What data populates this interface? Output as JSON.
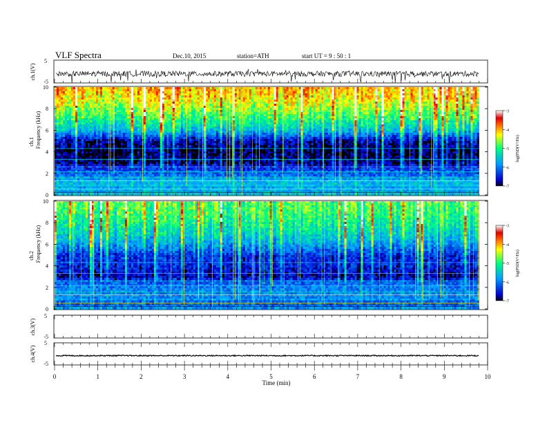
{
  "header": {
    "title": "VLF  Spectra",
    "date": "Dec.10, 2015",
    "station": "station=ATH",
    "start_ut": "start  UT  =   9  : 50 : 1"
  },
  "chart_data": {
    "type": "heatmap",
    "x_axis": {
      "label": "Time  (min)",
      "range": [
        0,
        10
      ],
      "ticks": [
        0,
        1,
        2,
        3,
        4,
        5,
        6,
        7,
        8,
        9,
        10
      ],
      "data_end": 9.8
    },
    "panels": [
      {
        "id": "ch1-waveform",
        "kind": "waveform",
        "ylabel": "ch.1(V)",
        "yticks": [
          "5",
          "-5"
        ],
        "ylim": [
          -5,
          5
        ],
        "baseline": -1,
        "noise_amplitude": 1.2
      },
      {
        "id": "ch1-spectrogram",
        "kind": "spectrogram",
        "ylabel_channel": "ch.1",
        "ylabel": "Frequency  (kHz)",
        "ylim": [
          0,
          10
        ],
        "yticks": [
          0,
          2,
          4,
          6,
          8,
          10
        ],
        "colorbar_label": "log(PSD(V²/Hz)",
        "colorbar_ticks": [
          "-3",
          "-4",
          "-5",
          "-6",
          "-7"
        ],
        "log_psd_range": [
          -7,
          -3
        ],
        "profile_kHz": [
          [
            0,
            -5.5
          ],
          [
            0.5,
            -5.8
          ],
          [
            1.2,
            -5.6
          ],
          [
            2,
            -6.2
          ],
          [
            2.5,
            -6.4
          ],
          [
            3,
            -6.8
          ],
          [
            4,
            -6.9
          ],
          [
            5,
            -6.7
          ],
          [
            6,
            -5.6
          ],
          [
            7,
            -5.0
          ],
          [
            8,
            -4.6
          ],
          [
            9,
            -4.2
          ],
          [
            10,
            -4.0
          ]
        ]
      },
      {
        "id": "ch2-spectrogram",
        "kind": "spectrogram",
        "ylabel_channel": "ch.2",
        "ylabel": "Frequency  (kHz)",
        "ylim": [
          0,
          10
        ],
        "yticks": [
          0,
          2,
          4,
          6,
          8,
          10
        ],
        "colorbar_label": "log(PSD(V²/Hz)",
        "colorbar_ticks": [
          "-3",
          "-4",
          "-5",
          "-6",
          "-7"
        ],
        "log_psd_range": [
          -7,
          -3
        ],
        "profile_kHz": [
          [
            0,
            -5.8
          ],
          [
            0.5,
            -6.2
          ],
          [
            1.2,
            -5.9
          ],
          [
            2,
            -6.0
          ],
          [
            2.5,
            -6.2
          ],
          [
            3,
            -6.7
          ],
          [
            4,
            -6.5
          ],
          [
            5,
            -6.4
          ],
          [
            6,
            -5.8
          ],
          [
            7,
            -5.4
          ],
          [
            8,
            -5.1
          ],
          [
            9,
            -4.9
          ],
          [
            10,
            -4.8
          ]
        ]
      },
      {
        "id": "ch3-waveform",
        "kind": "waveform",
        "ylabel": "ch.3(V)",
        "yticks": [
          "5",
          "-5"
        ],
        "ylim": [
          -5,
          5
        ],
        "baseline": 5,
        "noise_amplitude": 0.1
      },
      {
        "id": "ch4-waveform",
        "kind": "waveform",
        "ylabel": "ch.4(V)",
        "yticks": [
          "5",
          "-5"
        ],
        "ylim": [
          -5,
          5
        ],
        "baseline": -0.8,
        "noise_amplitude": 0.25
      }
    ],
    "colormap": [
      "#000000",
      "#0000d0",
      "#00a0ff",
      "#00ff80",
      "#ffff00",
      "#ff7000",
      "#e00000",
      "#ffffff"
    ]
  }
}
